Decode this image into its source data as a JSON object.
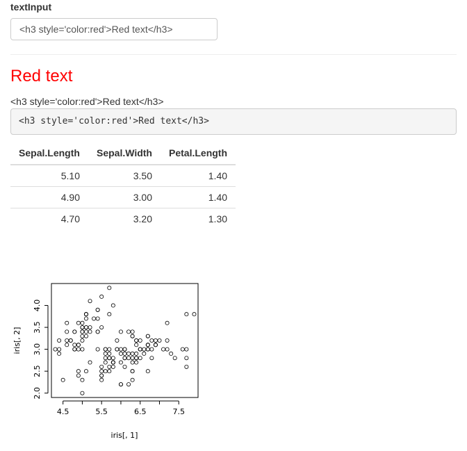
{
  "input_section": {
    "label": "textInput",
    "value": "<h3 style='color:red'>Red text</h3>"
  },
  "output": {
    "rendered_heading": "Red text",
    "raw_text": "<h3 style='color:red'>Red text</h3>",
    "verbatim": "<h3 style='color:red'>Red text</h3>"
  },
  "table": {
    "headers": [
      "Sepal.Length",
      "Sepal.Width",
      "Petal.Length"
    ],
    "rows": [
      [
        "5.10",
        "3.50",
        "1.40"
      ],
      [
        "4.90",
        "3.00",
        "1.40"
      ],
      [
        "4.70",
        "3.20",
        "1.30"
      ]
    ]
  },
  "chart_data": {
    "type": "scatter",
    "xlabel": "iris[, 1]",
    "ylabel": "iris[, 2]",
    "x_ticks": [
      "4.5",
      "5.5",
      "6.5",
      "7.5"
    ],
    "y_ticks": [
      "2.0",
      "2.5",
      "3.0",
      "3.5",
      "4.0"
    ],
    "xlim": [
      4.2,
      8.0
    ],
    "ylim": [
      1.9,
      4.5
    ],
    "points": [
      [
        5.1,
        3.5
      ],
      [
        4.9,
        3.0
      ],
      [
        4.7,
        3.2
      ],
      [
        4.6,
        3.1
      ],
      [
        5.0,
        3.6
      ],
      [
        5.4,
        3.9
      ],
      [
        4.6,
        3.4
      ],
      [
        5.0,
        3.4
      ],
      [
        4.4,
        2.9
      ],
      [
        4.9,
        3.1
      ],
      [
        5.4,
        3.7
      ],
      [
        4.8,
        3.4
      ],
      [
        4.8,
        3.0
      ],
      [
        4.3,
        3.0
      ],
      [
        5.8,
        4.0
      ],
      [
        5.7,
        4.4
      ],
      [
        5.4,
        3.9
      ],
      [
        5.1,
        3.5
      ],
      [
        5.7,
        3.8
      ],
      [
        5.1,
        3.8
      ],
      [
        5.4,
        3.4
      ],
      [
        5.1,
        3.7
      ],
      [
        4.6,
        3.6
      ],
      [
        5.1,
        3.3
      ],
      [
        4.8,
        3.4
      ],
      [
        5.0,
        3.0
      ],
      [
        5.0,
        3.4
      ],
      [
        5.2,
        3.5
      ],
      [
        5.2,
        3.4
      ],
      [
        4.7,
        3.2
      ],
      [
        4.8,
        3.1
      ],
      [
        5.4,
        3.4
      ],
      [
        5.2,
        4.1
      ],
      [
        5.5,
        4.2
      ],
      [
        4.9,
        3.1
      ],
      [
        5.0,
        3.2
      ],
      [
        5.5,
        3.5
      ],
      [
        4.9,
        3.6
      ],
      [
        4.4,
        3.0
      ],
      [
        5.1,
        3.4
      ],
      [
        5.0,
        3.5
      ],
      [
        4.5,
        2.3
      ],
      [
        4.4,
        3.2
      ],
      [
        5.0,
        3.5
      ],
      [
        5.1,
        3.8
      ],
      [
        4.8,
        3.0
      ],
      [
        5.1,
        3.8
      ],
      [
        4.6,
        3.2
      ],
      [
        5.3,
        3.7
      ],
      [
        5.0,
        3.3
      ],
      [
        7.0,
        3.2
      ],
      [
        6.4,
        3.2
      ],
      [
        6.9,
        3.1
      ],
      [
        5.5,
        2.3
      ],
      [
        6.5,
        2.8
      ],
      [
        5.7,
        2.8
      ],
      [
        6.3,
        3.3
      ],
      [
        4.9,
        2.4
      ],
      [
        6.6,
        2.9
      ],
      [
        5.2,
        2.7
      ],
      [
        5.0,
        2.0
      ],
      [
        5.9,
        3.0
      ],
      [
        6.0,
        2.2
      ],
      [
        6.1,
        2.9
      ],
      [
        5.6,
        2.9
      ],
      [
        6.7,
        3.1
      ],
      [
        5.6,
        3.0
      ],
      [
        5.8,
        2.7
      ],
      [
        6.2,
        2.2
      ],
      [
        5.6,
        2.5
      ],
      [
        5.9,
        3.2
      ],
      [
        6.1,
        2.8
      ],
      [
        6.3,
        2.5
      ],
      [
        6.1,
        2.8
      ],
      [
        6.4,
        2.9
      ],
      [
        6.6,
        3.0
      ],
      [
        6.8,
        2.8
      ],
      [
        6.7,
        3.0
      ],
      [
        6.0,
        2.9
      ],
      [
        5.7,
        2.6
      ],
      [
        5.5,
        2.4
      ],
      [
        5.5,
        2.4
      ],
      [
        5.8,
        2.7
      ],
      [
        6.0,
        2.7
      ],
      [
        5.4,
        3.0
      ],
      [
        6.0,
        3.4
      ],
      [
        6.7,
        3.1
      ],
      [
        6.3,
        2.3
      ],
      [
        5.6,
        3.0
      ],
      [
        5.5,
        2.5
      ],
      [
        5.5,
        2.6
      ],
      [
        6.1,
        3.0
      ],
      [
        5.8,
        2.6
      ],
      [
        5.0,
        2.3
      ],
      [
        5.6,
        2.7
      ],
      [
        5.7,
        3.0
      ],
      [
        5.7,
        2.9
      ],
      [
        6.2,
        2.9
      ],
      [
        5.1,
        2.5
      ],
      [
        5.7,
        2.8
      ],
      [
        6.3,
        3.3
      ],
      [
        5.8,
        2.7
      ],
      [
        7.1,
        3.0
      ],
      [
        6.3,
        2.9
      ],
      [
        6.5,
        3.0
      ],
      [
        7.6,
        3.0
      ],
      [
        4.9,
        2.5
      ],
      [
        7.3,
        2.9
      ],
      [
        6.7,
        2.5
      ],
      [
        7.2,
        3.6
      ],
      [
        6.5,
        3.2
      ],
      [
        6.4,
        2.7
      ],
      [
        6.8,
        3.0
      ],
      [
        5.7,
        2.5
      ],
      [
        5.8,
        2.8
      ],
      [
        6.4,
        3.2
      ],
      [
        6.5,
        3.0
      ],
      [
        7.7,
        3.8
      ],
      [
        7.7,
        2.6
      ],
      [
        6.0,
        2.2
      ],
      [
        6.9,
        3.2
      ],
      [
        5.6,
        2.8
      ],
      [
        7.7,
        2.8
      ],
      [
        6.3,
        2.7
      ],
      [
        6.7,
        3.3
      ],
      [
        7.2,
        3.2
      ],
      [
        6.2,
        2.8
      ],
      [
        6.1,
        3.0
      ],
      [
        6.4,
        2.8
      ],
      [
        7.2,
        3.0
      ],
      [
        7.4,
        2.8
      ],
      [
        7.9,
        3.8
      ],
      [
        6.4,
        2.8
      ],
      [
        6.3,
        2.8
      ],
      [
        6.1,
        2.6
      ],
      [
        7.7,
        3.0
      ],
      [
        6.3,
        3.4
      ],
      [
        6.4,
        3.1
      ],
      [
        6.0,
        3.0
      ],
      [
        6.9,
        3.1
      ],
      [
        6.7,
        3.1
      ],
      [
        6.9,
        3.1
      ],
      [
        5.8,
        2.7
      ],
      [
        6.8,
        3.2
      ],
      [
        6.7,
        3.3
      ],
      [
        6.7,
        3.0
      ],
      [
        6.3,
        2.5
      ],
      [
        6.5,
        3.0
      ],
      [
        6.2,
        3.4
      ],
      [
        5.9,
        3.0
      ]
    ]
  }
}
